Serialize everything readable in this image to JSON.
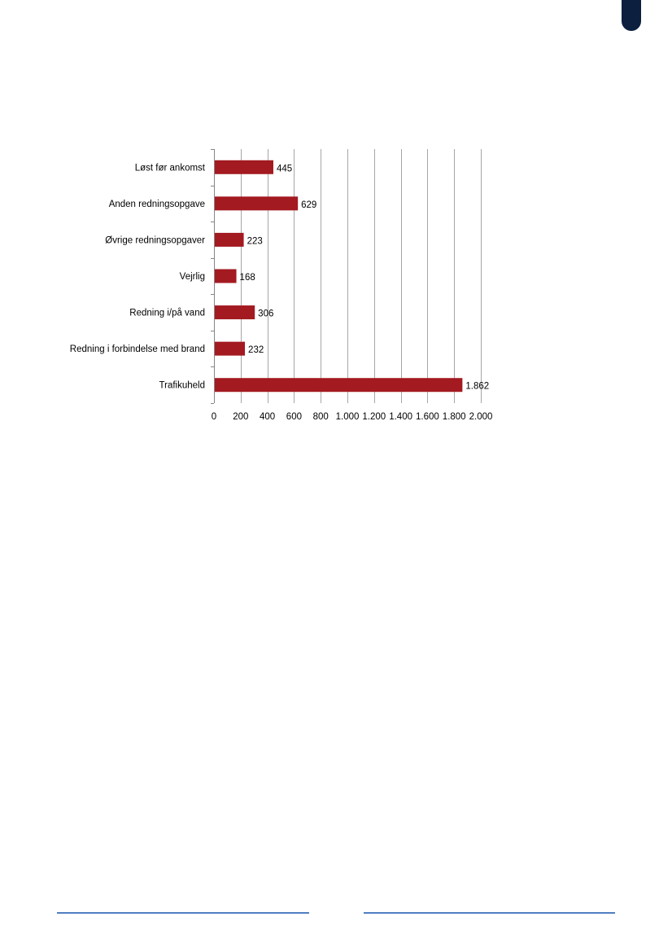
{
  "chart_data": {
    "type": "bar",
    "orientation": "horizontal",
    "categories": [
      "Løst før ankomst",
      "Anden redningsopgave",
      "Øvrige redningsopgaver",
      "Vejrlig",
      "Redning i/på vand",
      "Redning i forbindelse med brand",
      "Trafikuheld"
    ],
    "values": [
      445,
      629,
      223,
      168,
      306,
      232,
      1862
    ],
    "value_labels": [
      "445",
      "629",
      "223",
      "168",
      "306",
      "232",
      "1.862"
    ],
    "xlim": [
      0,
      2000
    ],
    "xticks": [
      0,
      200,
      400,
      600,
      800,
      1000,
      1200,
      1400,
      1600,
      1800,
      2000
    ],
    "xtick_labels": [
      "0",
      "200",
      "400",
      "600",
      "800",
      "1.000",
      "1.200",
      "1.400",
      "1.600",
      "1.800",
      "2.000"
    ],
    "grid": true,
    "bar_color": "#a31a21",
    "title": "",
    "xlabel": "",
    "ylabel": ""
  },
  "page": {
    "corner_mark_color": "#0c1f3f",
    "footer_rule_color": "#4f7fc3"
  }
}
